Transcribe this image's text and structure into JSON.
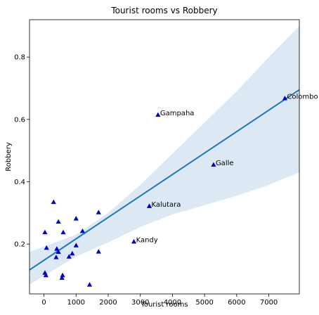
{
  "chart_data": {
    "type": "scatter",
    "title": "Tourist rooms vs Robbery",
    "xlabel": "Tourist rooms",
    "ylabel": "Robbery",
    "xlim": [
      -450,
      7950
    ],
    "ylim": [
      0.04,
      0.92
    ],
    "xticks": [
      0,
      1000,
      2000,
      3000,
      4000,
      5000,
      6000,
      7000
    ],
    "yticks": [
      0.2,
      0.4,
      0.6,
      0.8
    ],
    "point_color": "#0000cc",
    "line_color": "#1f77b4",
    "band_color": "#dce8f4",
    "points": [
      {
        "x": 7500,
        "y": 0.668,
        "label": "Colombo"
      },
      {
        "x": 3550,
        "y": 0.615,
        "label": "Gampaha"
      },
      {
        "x": 5280,
        "y": 0.455,
        "label": "Galle"
      },
      {
        "x": 3280,
        "y": 0.322,
        "label": "Kalutara"
      },
      {
        "x": 2800,
        "y": 0.208,
        "label": "Kandy"
      },
      {
        "x": 300,
        "y": 0.335,
        "label": ""
      },
      {
        "x": 450,
        "y": 0.272,
        "label": ""
      },
      {
        "x": 1000,
        "y": 0.282,
        "label": ""
      },
      {
        "x": 1700,
        "y": 0.302,
        "label": ""
      },
      {
        "x": 30,
        "y": 0.238,
        "label": ""
      },
      {
        "x": 600,
        "y": 0.238,
        "label": ""
      },
      {
        "x": 1200,
        "y": 0.242,
        "label": ""
      },
      {
        "x": 80,
        "y": 0.188,
        "label": ""
      },
      {
        "x": 400,
        "y": 0.185,
        "label": ""
      },
      {
        "x": 450,
        "y": 0.175,
        "label": ""
      },
      {
        "x": 1000,
        "y": 0.196,
        "label": ""
      },
      {
        "x": 1700,
        "y": 0.176,
        "label": ""
      },
      {
        "x": 380,
        "y": 0.158,
        "label": ""
      },
      {
        "x": 780,
        "y": 0.16,
        "label": ""
      },
      {
        "x": 880,
        "y": 0.17,
        "label": ""
      },
      {
        "x": 30,
        "y": 0.108,
        "label": ""
      },
      {
        "x": 60,
        "y": 0.1,
        "label": ""
      },
      {
        "x": 580,
        "y": 0.1,
        "label": ""
      },
      {
        "x": 560,
        "y": 0.092,
        "label": ""
      },
      {
        "x": 1420,
        "y": 0.07,
        "label": ""
      }
    ],
    "regression": {
      "x": [
        -450,
        7950
      ],
      "y": [
        0.117,
        0.695
      ]
    },
    "confidence_band": {
      "x": [
        -450,
        1000,
        2000,
        3000,
        4000,
        5000,
        6000,
        7000,
        7950
      ],
      "upper": [
        0.175,
        0.23,
        0.3,
        0.39,
        0.49,
        0.59,
        0.69,
        0.8,
        0.9
      ],
      "lower": [
        0.07,
        0.16,
        0.205,
        0.255,
        0.295,
        0.325,
        0.355,
        0.39,
        0.43
      ]
    }
  }
}
